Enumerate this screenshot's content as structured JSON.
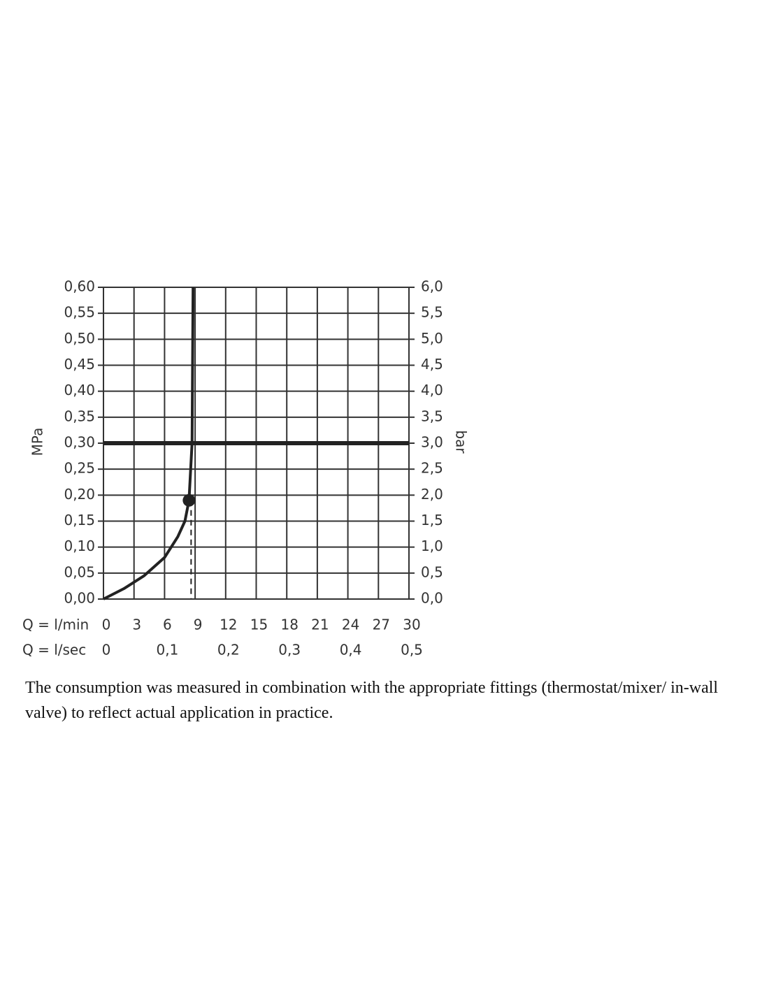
{
  "chart_data": {
    "type": "line",
    "x": [
      0,
      2,
      4,
      6,
      7.3,
      8,
      8.4,
      8.7,
      8.8
    ],
    "series": [
      {
        "values": [
          0,
          0.02,
          0.045,
          0.08,
          0.12,
          0.15,
          0.19,
          0.3,
          0.6
        ],
        "color": "#222222"
      }
    ],
    "point": {
      "x": 8.4,
      "y": 0.19
    },
    "reference_line": 0.3,
    "grid": true,
    "xlabel": "Q = l/min",
    "x2label": "Q = l/sec",
    "ylabel": "MPa",
    "y2label": "bar",
    "xlim": [
      0,
      30
    ],
    "xticks": [
      0,
      3,
      6,
      9,
      12,
      15,
      18,
      21,
      24,
      27,
      30
    ],
    "x2lim": [
      0,
      0.5
    ],
    "x2ticks": [
      0,
      {
        "value": 0.1,
        "label": "0,1"
      },
      {
        "value": 0.2,
        "label": "0,2"
      },
      {
        "value": 0.3,
        "label": "0,3"
      },
      {
        "value": 0.4,
        "label": "0,4"
      },
      {
        "value": 0.5,
        "label": "0,5"
      }
    ],
    "ylim": [
      0,
      0.6
    ],
    "yticks": [
      {
        "value": 0,
        "label": "0,00"
      },
      {
        "value": 0.05,
        "label": "0,05"
      },
      {
        "value": 0.1,
        "label": "0,10"
      },
      {
        "value": 0.15,
        "label": "0,15"
      },
      {
        "value": 0.2,
        "label": "0,20"
      },
      {
        "value": 0.25,
        "label": "0,25"
      },
      {
        "value": 0.3,
        "label": "0,30"
      },
      {
        "value": 0.35,
        "label": "0,35"
      },
      {
        "value": 0.4,
        "label": "0,40"
      },
      {
        "value": 0.45,
        "label": "0,45"
      },
      {
        "value": 0.5,
        "label": "0,50"
      },
      {
        "value": 0.55,
        "label": "0,55"
      },
      {
        "value": 0.6,
        "label": "0,60"
      }
    ],
    "y2lim": [
      0,
      6
    ],
    "y2ticks": [
      {
        "value": 0,
        "label": "0,0"
      },
      {
        "value": 0.5,
        "label": "0,5"
      },
      {
        "value": 1,
        "label": "1,0"
      },
      {
        "value": 1.5,
        "label": "1,5"
      },
      {
        "value": 2,
        "label": "2,0"
      },
      {
        "value": 2.5,
        "label": "2,5"
      },
      {
        "value": 3,
        "label": "3,0"
      },
      {
        "value": 3.5,
        "label": "3,5"
      },
      {
        "value": 4,
        "label": "4,0"
      },
      {
        "value": 4.5,
        "label": "4,5"
      },
      {
        "value": 5,
        "label": "5,0"
      },
      {
        "value": 5.5,
        "label": "5,5"
      },
      {
        "value": 6,
        "label": "6,0"
      }
    ],
    "caption": "The consumption was measured in combination with the appropriate fittings (thermostat/mixer/ in-wall valve) to reflect actual application in practice."
  }
}
